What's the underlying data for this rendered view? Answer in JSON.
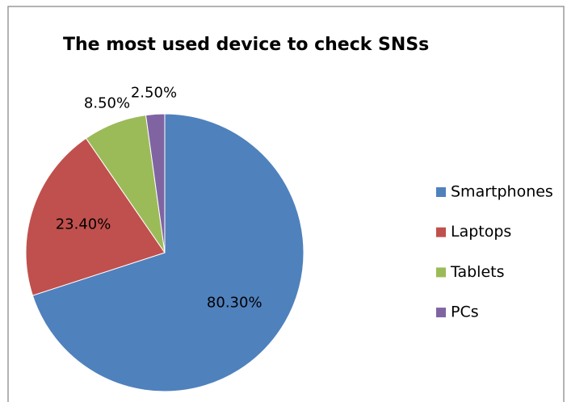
{
  "chart_data": {
    "type": "pie",
    "title": "The most used device to check SNSs",
    "categories": [
      "Smartphones",
      "Laptops",
      "Tablets",
      "PCs"
    ],
    "values": [
      80.3,
      23.4,
      8.5,
      2.5
    ],
    "value_labels": [
      "80.30%",
      "23.40%",
      "8.50%",
      "2.50%"
    ],
    "colors": [
      "#4f81bd",
      "#c0504d",
      "#9bbb59",
      "#8064a2"
    ],
    "legend": "right"
  }
}
